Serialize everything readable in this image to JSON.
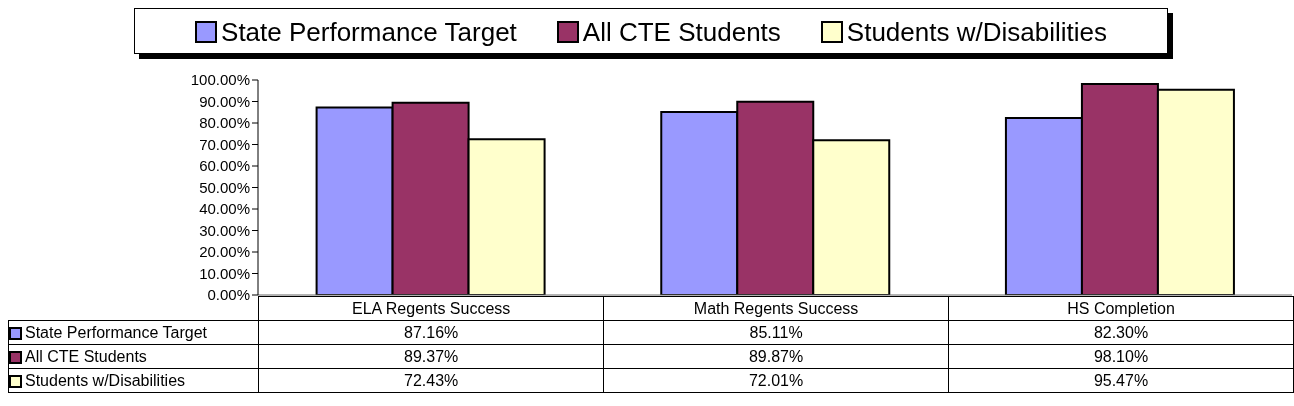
{
  "chart_data": {
    "type": "bar",
    "categories": [
      "ELA Regents Success",
      "Math Regents Success",
      "HS Completion"
    ],
    "series": [
      {
        "name": "State Performance Target",
        "color": "#9999ff",
        "values": [
          87.16,
          85.11,
          82.3
        ],
        "value_labels": [
          "87.16%",
          "85.11%",
          "82.30%"
        ]
      },
      {
        "name": "All CTE Students",
        "color": "#993366",
        "values": [
          89.37,
          89.87,
          98.1
        ],
        "value_labels": [
          "89.37%",
          "89.87%",
          "98.10%"
        ]
      },
      {
        "name": "Students w/Disabilities",
        "color": "#ffffcc",
        "values": [
          72.43,
          72.01,
          95.47
        ],
        "value_labels": [
          "72.43%",
          "72.01%",
          "95.47%"
        ]
      }
    ],
    "ylim": [
      0,
      100
    ],
    "yticks": [
      {
        "value": 0,
        "label": "0.00%"
      },
      {
        "value": 10,
        "label": "10.00%"
      },
      {
        "value": 20,
        "label": "20.00%"
      },
      {
        "value": 30,
        "label": "30.00%"
      },
      {
        "value": 40,
        "label": "40.00%"
      },
      {
        "value": 50,
        "label": "50.00%"
      },
      {
        "value": 60,
        "label": "60.00%"
      },
      {
        "value": 70,
        "label": "70.00%"
      },
      {
        "value": 80,
        "label": "80.00%"
      },
      {
        "value": 90,
        "label": "90.00%"
      },
      {
        "value": 100,
        "label": "100.00%"
      }
    ],
    "legend": "top"
  }
}
